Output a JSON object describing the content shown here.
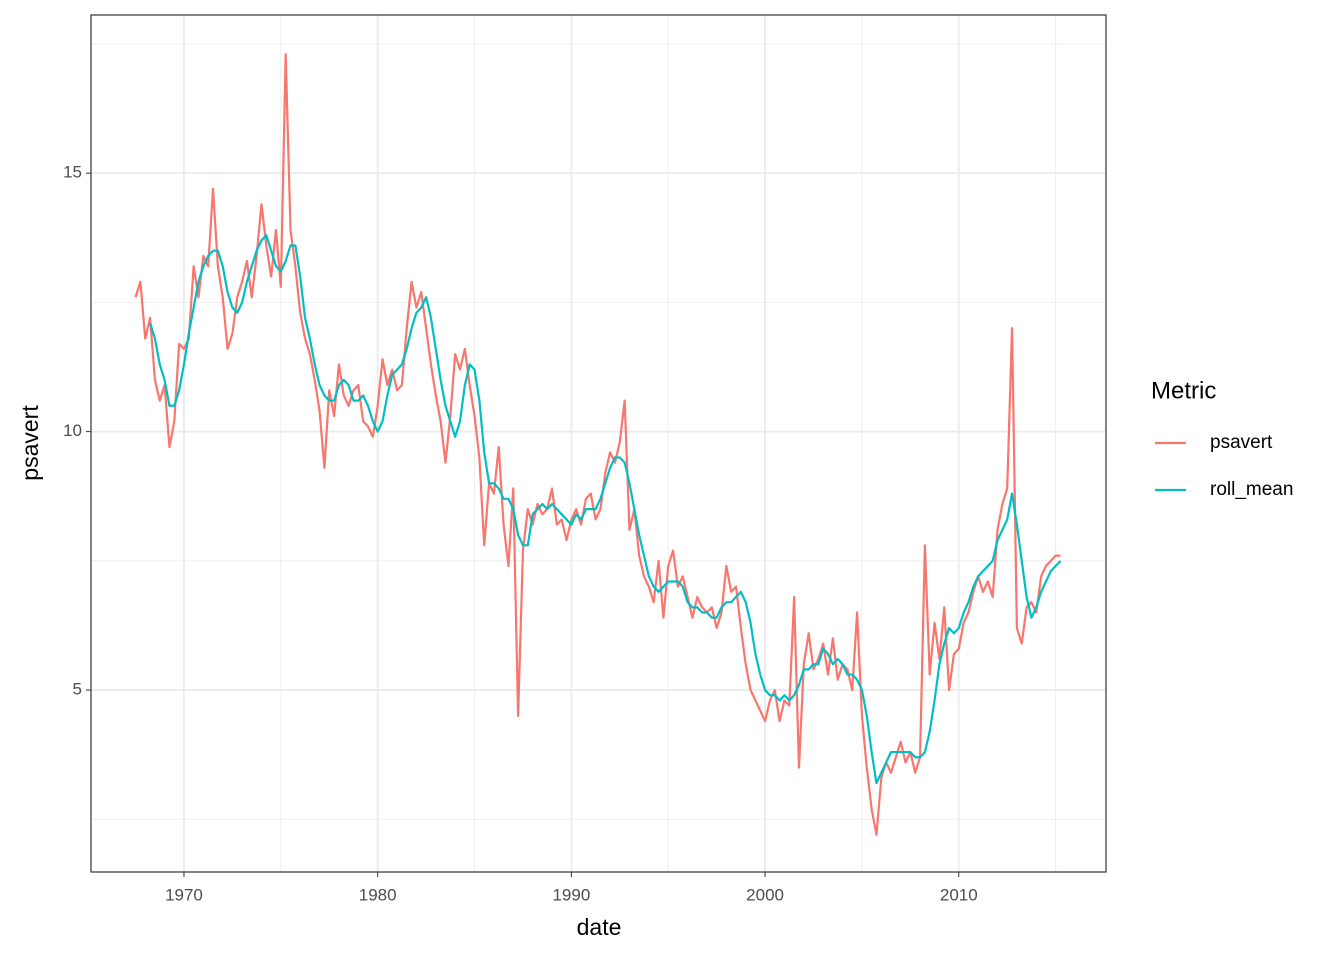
{
  "chart_data": {
    "type": "line",
    "x_label": "date",
    "y_label": "psavert",
    "legend_title": "Metric",
    "legend_position": "right",
    "xlim": [
      1965.2,
      2017.6
    ],
    "xticks": [
      1970,
      1980,
      1990,
      2000,
      2010
    ],
    "xminor": [
      1975,
      1985,
      1995,
      2005,
      2015
    ],
    "ylim": [
      1.48,
      18.06
    ],
    "yticks": [
      5,
      10,
      15
    ],
    "yminor": [
      2.5,
      7.5,
      12.5,
      17.5
    ],
    "grid": true,
    "x": [
      1967.5,
      1967.75,
      1968,
      1968.25,
      1968.5,
      1968.75,
      1969,
      1969.25,
      1969.5,
      1969.75,
      1970,
      1970.25,
      1970.5,
      1970.75,
      1971,
      1971.25,
      1971.5,
      1971.75,
      1972,
      1972.25,
      1972.5,
      1972.75,
      1973,
      1973.25,
      1973.5,
      1973.75,
      1974,
      1974.25,
      1974.5,
      1974.75,
      1975,
      1975.25,
      1975.5,
      1975.75,
      1976,
      1976.25,
      1976.5,
      1976.75,
      1977,
      1977.25,
      1977.5,
      1977.75,
      1978,
      1978.25,
      1978.5,
      1978.75,
      1979,
      1979.25,
      1979.5,
      1979.75,
      1980,
      1980.25,
      1980.5,
      1980.75,
      1981,
      1981.25,
      1981.5,
      1981.75,
      1982,
      1982.25,
      1982.5,
      1982.75,
      1983,
      1983.25,
      1983.5,
      1983.75,
      1984,
      1984.25,
      1984.5,
      1984.75,
      1985,
      1985.25,
      1985.5,
      1985.75,
      1986,
      1986.25,
      1986.5,
      1986.75,
      1987,
      1987.25,
      1987.5,
      1987.75,
      1988,
      1988.25,
      1988.5,
      1988.75,
      1989,
      1989.25,
      1989.5,
      1989.75,
      1990,
      1990.25,
      1990.5,
      1990.75,
      1991,
      1991.25,
      1991.5,
      1991.75,
      1992,
      1992.25,
      1992.5,
      1992.75,
      1993,
      1993.25,
      1993.5,
      1993.75,
      1994,
      1994.25,
      1994.5,
      1994.75,
      1995,
      1995.25,
      1995.5,
      1995.75,
      1996,
      1996.25,
      1996.5,
      1996.75,
      1997,
      1997.25,
      1997.5,
      1997.75,
      1998,
      1998.25,
      1998.5,
      1998.75,
      1999,
      1999.25,
      1999.5,
      1999.75,
      2000,
      2000.25,
      2000.5,
      2000.75,
      2001,
      2001.25,
      2001.5,
      2001.75,
      2002,
      2002.25,
      2002.5,
      2002.75,
      2003,
      2003.25,
      2003.5,
      2003.75,
      2004,
      2004.25,
      2004.5,
      2004.75,
      2005,
      2005.25,
      2005.5,
      2005.75,
      2006,
      2006.25,
      2006.5,
      2006.75,
      2007,
      2007.25,
      2007.5,
      2007.75,
      2008,
      2008.25,
      2008.5,
      2008.75,
      2009,
      2009.25,
      2009.5,
      2009.75,
      2010,
      2010.25,
      2010.5,
      2010.75,
      2011,
      2011.25,
      2011.5,
      2011.75,
      2012,
      2012.25,
      2012.5,
      2012.75,
      2013,
      2013.25,
      2013.5,
      2013.75,
      2014,
      2014.25,
      2014.5,
      2014.75,
      2015,
      2015.25
    ],
    "series": [
      {
        "name": "psavert",
        "color": "#F8766D",
        "values": [
          12.6,
          12.9,
          11.8,
          12.2,
          11.0,
          10.6,
          10.9,
          9.7,
          10.2,
          11.7,
          11.6,
          11.8,
          13.2,
          12.6,
          13.4,
          13.2,
          14.7,
          13.2,
          12.6,
          11.6,
          11.9,
          12.6,
          12.9,
          13.3,
          12.6,
          13.4,
          14.4,
          13.6,
          13.0,
          13.9,
          12.8,
          17.3,
          13.9,
          13.2,
          12.3,
          11.8,
          11.5,
          11.0,
          10.4,
          9.3,
          10.8,
          10.3,
          11.3,
          10.7,
          10.5,
          10.8,
          10.9,
          10.2,
          10.1,
          9.9,
          10.5,
          11.4,
          10.9,
          11.2,
          10.8,
          10.9,
          12.0,
          12.9,
          12.4,
          12.7,
          12.0,
          11.3,
          10.7,
          10.2,
          9.4,
          10.3,
          11.5,
          11.2,
          11.6,
          10.9,
          10.3,
          9.5,
          7.8,
          9.0,
          8.8,
          9.7,
          8.2,
          7.4,
          8.9,
          4.5,
          7.7,
          8.5,
          8.2,
          8.6,
          8.4,
          8.5,
          8.9,
          8.2,
          8.3,
          7.9,
          8.3,
          8.5,
          8.2,
          8.7,
          8.8,
          8.3,
          8.5,
          9.2,
          9.6,
          9.4,
          9.8,
          10.6,
          8.1,
          8.5,
          7.6,
          7.2,
          7.0,
          6.7,
          7.5,
          6.4,
          7.4,
          7.7,
          7.0,
          7.2,
          6.8,
          6.4,
          6.8,
          6.6,
          6.5,
          6.6,
          6.2,
          6.5,
          7.4,
          6.9,
          7.0,
          6.2,
          5.5,
          5.0,
          4.8,
          4.6,
          4.4,
          4.8,
          5.0,
          4.4,
          4.8,
          4.7,
          6.8,
          3.5,
          5.5,
          6.1,
          5.4,
          5.6,
          5.9,
          5.3,
          6.0,
          5.2,
          5.5,
          5.4,
          5.0,
          6.5,
          4.5,
          3.5,
          2.7,
          2.2,
          3.3,
          3.6,
          3.4,
          3.7,
          4.0,
          3.6,
          3.8,
          3.4,
          3.7,
          7.8,
          5.3,
          6.3,
          5.6,
          6.6,
          5.0,
          5.7,
          5.8,
          6.3,
          6.5,
          6.9,
          7.2,
          6.9,
          7.1,
          6.8,
          8.1,
          8.6,
          8.9,
          12.0,
          6.2,
          5.9,
          6.6,
          6.7,
          6.5,
          7.2,
          7.4,
          7.5,
          7.6,
          7.6
        ]
      },
      {
        "name": "roll_mean",
        "color": "#00BFC4",
        "values": [
          null,
          null,
          null,
          12.1,
          11.8,
          11.3,
          11.0,
          10.5,
          10.5,
          10.8,
          11.3,
          11.9,
          12.4,
          12.9,
          13.2,
          13.4,
          13.5,
          13.5,
          13.2,
          12.7,
          12.4,
          12.3,
          12.5,
          12.9,
          13.2,
          13.5,
          13.7,
          13.8,
          13.5,
          13.2,
          13.1,
          13.3,
          13.6,
          13.6,
          13.0,
          12.2,
          11.8,
          11.3,
          10.9,
          10.7,
          10.6,
          10.6,
          10.9,
          11.0,
          10.9,
          10.6,
          10.6,
          10.7,
          10.5,
          10.2,
          10.0,
          10.2,
          10.7,
          11.1,
          11.2,
          11.3,
          11.6,
          12.0,
          12.3,
          12.4,
          12.6,
          12.2,
          11.6,
          11.0,
          10.5,
          10.2,
          9.9,
          10.2,
          10.9,
          11.3,
          11.2,
          10.6,
          9.6,
          9.0,
          9.0,
          8.9,
          8.7,
          8.7,
          8.5,
          8.0,
          7.8,
          7.8,
          8.4,
          8.5,
          8.6,
          8.5,
          8.6,
          8.5,
          8.4,
          8.3,
          8.2,
          8.4,
          8.3,
          8.5,
          8.5,
          8.5,
          8.7,
          9.0,
          9.3,
          9.5,
          9.5,
          9.4,
          9.0,
          8.5,
          8.0,
          7.6,
          7.2,
          7.0,
          6.9,
          7.0,
          7.1,
          7.1,
          7.1,
          7.0,
          6.7,
          6.6,
          6.6,
          6.5,
          6.5,
          6.4,
          6.4,
          6.6,
          6.7,
          6.7,
          6.8,
          6.9,
          6.7,
          6.3,
          5.7,
          5.3,
          5.0,
          4.9,
          4.9,
          4.8,
          4.9,
          4.8,
          4.9,
          5.1,
          5.4,
          5.4,
          5.5,
          5.5,
          5.8,
          5.7,
          5.5,
          5.6,
          5.5,
          5.3,
          5.3,
          5.2,
          5.0,
          4.5,
          3.8,
          3.2,
          3.4,
          3.6,
          3.8,
          3.8,
          3.8,
          3.8,
          3.8,
          3.7,
          3.7,
          3.8,
          4.2,
          4.8,
          5.5,
          5.9,
          6.2,
          6.1,
          6.2,
          6.5,
          6.7,
          7.0,
          7.2,
          7.3,
          7.4,
          7.5,
          7.9,
          8.1,
          8.3,
          8.8,
          8.2,
          7.5,
          6.8,
          6.4,
          6.6,
          6.9,
          7.1,
          7.3,
          7.4,
          7.5
        ]
      }
    ]
  }
}
